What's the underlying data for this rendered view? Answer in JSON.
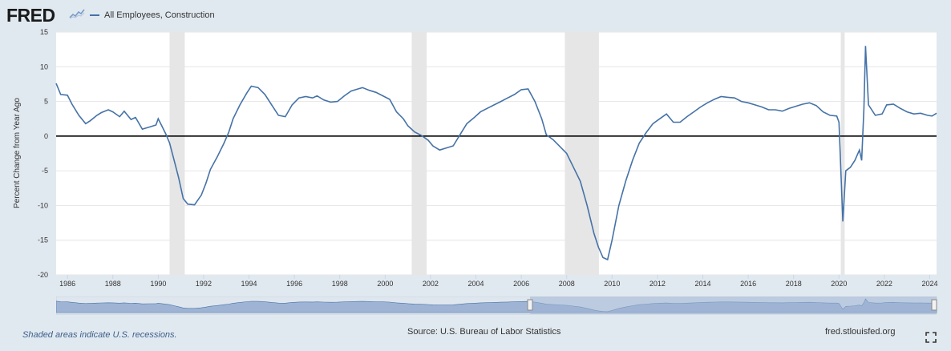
{
  "header": {
    "logo_text": "FRED",
    "logo_icon": "fred-trend-line-icon",
    "series_legend": "All Employees, Construction"
  },
  "footer": {
    "recession_note": "Shaded areas indicate U.S. recessions.",
    "source": "Source: U.S. Bureau of Labor Statistics",
    "site": "fred.stlouisfed.org",
    "fullscreen_icon": "fullscreen-expand-icon"
  },
  "colors": {
    "line": "#4572a7",
    "recession_shade": "#e6e6e6",
    "zero_line": "#000000",
    "background": "#e1e9f0",
    "plot_background": "#ffffff",
    "navigator_selection": "#9fb4d4"
  },
  "chart_data": {
    "type": "line",
    "title": "",
    "ylabel": "Percent Change from Year Ago",
    "xlabel": "",
    "xlim": [
      1985.5,
      2024.3
    ],
    "ylim": [
      -20,
      15
    ],
    "y_ticks": [
      15,
      10,
      5,
      0,
      -5,
      -10,
      -15,
      -20
    ],
    "x_ticks": [
      1986,
      1988,
      1990,
      1992,
      1994,
      1996,
      1998,
      2000,
      2002,
      2004,
      2006,
      2008,
      2010,
      2012,
      2014,
      2016,
      2018,
      2020,
      2022,
      2024
    ],
    "grid": true,
    "zero_line": true,
    "recessions": [
      [
        1990.5,
        1991.17
      ],
      [
        2001.17,
        2001.83
      ],
      [
        2007.92,
        2009.42
      ],
      [
        2020.08,
        2020.25
      ]
    ],
    "series": [
      {
        "name": "All Employees, Construction",
        "x": [
          1985.5,
          1985.7,
          1986.0,
          1986.2,
          1986.5,
          1986.8,
          1987.0,
          1987.3,
          1987.5,
          1987.8,
          1988.0,
          1988.3,
          1988.5,
          1988.8,
          1989.0,
          1989.3,
          1989.6,
          1989.9,
          1990.0,
          1990.2,
          1990.35,
          1990.5,
          1990.7,
          1990.9,
          1991.1,
          1991.3,
          1991.6,
          1991.9,
          1992.1,
          1992.3,
          1992.6,
          1992.9,
          1993.1,
          1993.3,
          1993.6,
          1993.9,
          1994.1,
          1994.4,
          1994.7,
          1995.0,
          1995.3,
          1995.6,
          1995.9,
          1996.2,
          1996.5,
          1996.8,
          1997.0,
          1997.3,
          1997.6,
          1997.9,
          1998.2,
          1998.5,
          1998.8,
          1999.0,
          1999.3,
          1999.6,
          1999.9,
          2000.2,
          2000.5,
          2000.8,
          2001.0,
          2001.3,
          2001.6,
          2001.9,
          2002.1,
          2002.4,
          2002.7,
          2003.0,
          2003.3,
          2003.6,
          2003.9,
          2004.2,
          2004.5,
          2004.8,
          2005.1,
          2005.4,
          2005.7,
          2006.0,
          2006.3,
          2006.6,
          2006.9,
          2007.1,
          2007.4,
          2007.7,
          2008.0,
          2008.3,
          2008.6,
          2008.9,
          2009.2,
          2009.4,
          2009.6,
          2009.8,
          2010.0,
          2010.3,
          2010.6,
          2010.9,
          2011.2,
          2011.5,
          2011.8,
          2012.1,
          2012.4,
          2012.7,
          2013.0,
          2013.3,
          2013.6,
          2013.9,
          2014.2,
          2014.5,
          2014.8,
          2015.1,
          2015.4,
          2015.7,
          2016.0,
          2016.3,
          2016.6,
          2016.9,
          2017.2,
          2017.5,
          2017.8,
          2018.1,
          2018.4,
          2018.7,
          2019.0,
          2019.3,
          2019.6,
          2019.9,
          2020.0,
          2020.17,
          2020.3,
          2020.5,
          2020.7,
          2020.9,
          2021.0,
          2021.1,
          2021.17,
          2021.3,
          2021.6,
          2021.9,
          2022.1,
          2022.4,
          2022.7,
          2023.0,
          2023.3,
          2023.6,
          2023.9,
          2024.1,
          2024.3
        ],
        "values": [
          7.6,
          6.0,
          5.9,
          4.6,
          3.0,
          1.8,
          2.2,
          3.0,
          3.4,
          3.8,
          3.5,
          2.8,
          3.6,
          2.4,
          2.7,
          1.0,
          1.3,
          1.6,
          2.5,
          1.2,
          0.2,
          -1.0,
          -3.5,
          -6.0,
          -9.0,
          -9.8,
          -9.9,
          -8.5,
          -6.8,
          -4.8,
          -3.0,
          -1.0,
          0.5,
          2.5,
          4.5,
          6.2,
          7.2,
          7.0,
          6.0,
          4.5,
          3.0,
          2.8,
          4.5,
          5.5,
          5.7,
          5.5,
          5.8,
          5.2,
          4.9,
          5.0,
          5.8,
          6.5,
          6.8,
          7.0,
          6.6,
          6.3,
          5.8,
          5.3,
          3.5,
          2.5,
          1.5,
          0.6,
          0.1,
          -0.6,
          -1.4,
          -2.0,
          -1.7,
          -1.4,
          0.2,
          1.8,
          2.6,
          3.5,
          4.0,
          4.5,
          5.0,
          5.5,
          6.0,
          6.7,
          6.8,
          5.0,
          2.5,
          0.2,
          -0.5,
          -1.5,
          -2.5,
          -4.5,
          -6.5,
          -10.0,
          -14.0,
          -16.0,
          -17.5,
          -17.8,
          -15.0,
          -10.0,
          -6.5,
          -3.5,
          -1.0,
          0.5,
          1.8,
          2.5,
          3.2,
          2.0,
          2.0,
          2.8,
          3.5,
          4.2,
          4.8,
          5.3,
          5.7,
          5.6,
          5.5,
          5.0,
          4.8,
          4.5,
          4.2,
          3.8,
          3.8,
          3.6,
          4.0,
          4.3,
          4.6,
          4.8,
          4.4,
          3.5,
          3.0,
          2.9,
          2.0,
          -12.3,
          -5.0,
          -4.5,
          -3.5,
          -2.0,
          -3.5,
          4.0,
          13.0,
          4.5,
          3.0,
          3.2,
          4.5,
          4.6,
          4.0,
          3.5,
          3.2,
          3.3,
          3.0,
          2.9,
          3.3
        ]
      }
    ]
  }
}
